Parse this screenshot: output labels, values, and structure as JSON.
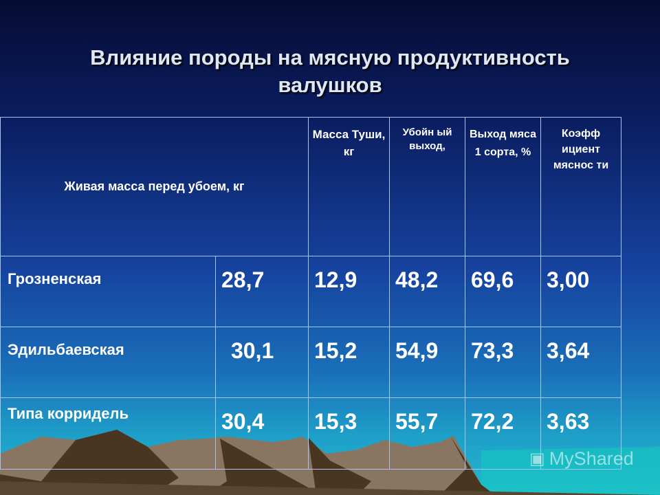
{
  "slide": {
    "title_line1": "Влияние породы на мясную продуктивность",
    "title_line2": "валушков"
  },
  "table": {
    "headers": [
      "Живая масса перед убоем, кг",
      "Масса Туши, кг",
      "Убойн ый выход,",
      "Выход мяса 1 сорта, %",
      "Коэфф ициент мяснос ти"
    ],
    "rows": [
      {
        "breed": "Грозненская",
        "values": [
          "28,7",
          "12,9",
          "48,2",
          "69,6",
          "3,00"
        ]
      },
      {
        "breed": "Эдильбаевская",
        "values": [
          "30,1",
          "15,2",
          "54,9",
          "73,3",
          "3,64"
        ]
      },
      {
        "breed": "Типа корридель",
        "values": [
          "30,4",
          "15,3",
          "55,7",
          "72,2",
          "3,63"
        ]
      }
    ]
  },
  "watermark": {
    "text": "MyShared"
  },
  "colors": {
    "background_top": "#060c33",
    "background_mid": "#1644a0",
    "background_bottom": "#22b8d0",
    "mountains": "#8a7560"
  }
}
